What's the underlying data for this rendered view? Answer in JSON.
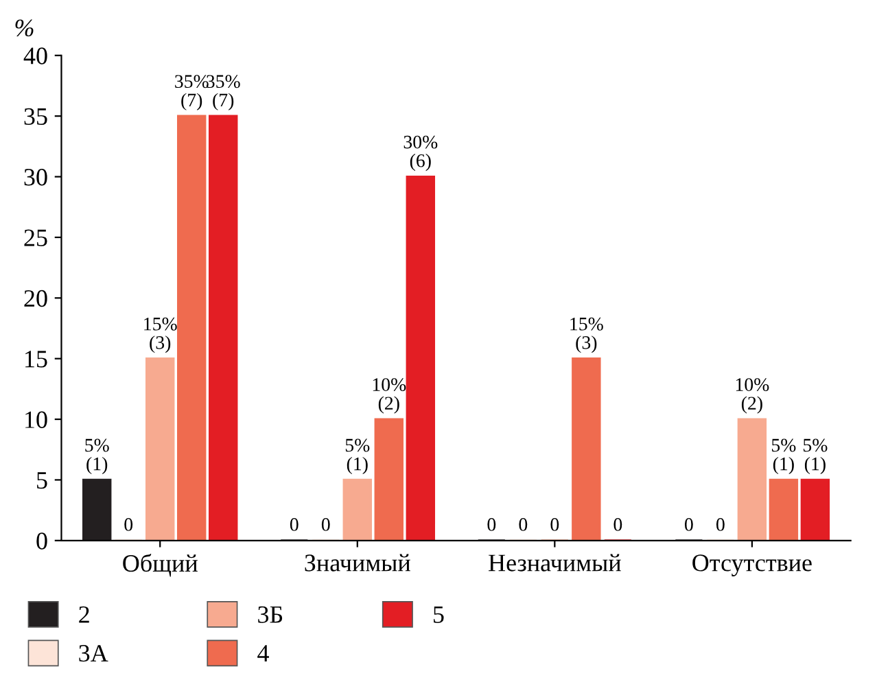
{
  "chart_data": {
    "type": "bar",
    "ylabel": "%",
    "categories": [
      "Общий",
      "Значимый",
      "Незначимый",
      "Отсутствие"
    ],
    "series": [
      {
        "name": "2",
        "color": "#231f20",
        "values": [
          5,
          0,
          0,
          0
        ],
        "value_labels": [
          "5%\n(1)",
          "0",
          "0",
          "0"
        ]
      },
      {
        "name": "3А",
        "color": "#fde4d8",
        "values": [
          0,
          0,
          0,
          0
        ],
        "value_labels": [
          "0",
          "0",
          "0",
          "0"
        ]
      },
      {
        "name": "3Б",
        "color": "#f7aa90",
        "values": [
          15,
          5,
          0,
          10
        ],
        "value_labels": [
          "15%\n(3)",
          "5%\n(1)",
          "0",
          "10%\n(2)"
        ]
      },
      {
        "name": "4",
        "color": "#ef6b4f",
        "values": [
          35,
          10,
          15,
          5
        ],
        "value_labels": [
          "35%\n(7)",
          "10%\n(2)",
          "15%\n(3)",
          "5%\n(1)"
        ]
      },
      {
        "name": "5",
        "color": "#e31e24",
        "values": [
          35,
          30,
          0,
          5
        ],
        "value_labels": [
          "35%\n(7)",
          "30%\n(6)",
          "0",
          "5%\n(1)"
        ]
      }
    ],
    "ylim": [
      0,
      40
    ],
    "yticks": [
      0,
      5,
      10,
      15,
      20,
      25,
      30,
      35,
      40
    ],
    "grid": false,
    "legend": "bottom"
  }
}
